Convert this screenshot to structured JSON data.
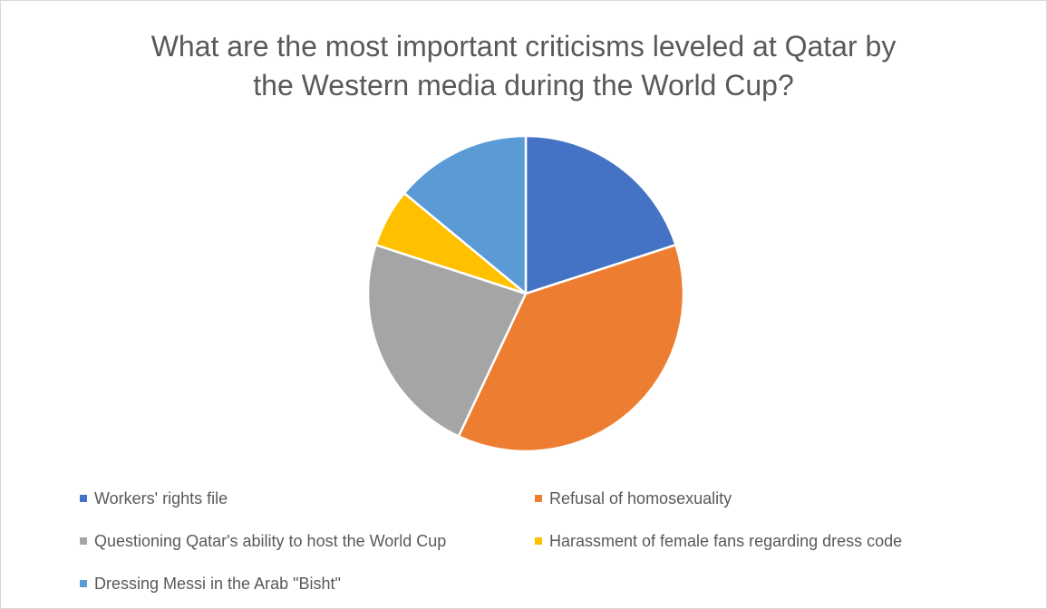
{
  "chart_data": {
    "type": "pie",
    "title": "What are the most important criticisms leveled at Qatar by the Western media during the World Cup?",
    "title_lines": [
      "What are the most important criticisms leveled at Qatar by",
      "the Western media during the World Cup?"
    ],
    "categories": [
      "Workers' rights file",
      "Refusal of homosexuality",
      "Questioning Qatar's ability to host the World Cup",
      "Harassment of female fans regarding dress code",
      "Dressing Messi in the Arab \"Bisht\""
    ],
    "values": [
      20,
      37,
      23,
      6,
      14
    ],
    "colors": [
      "#4472c4",
      "#ed7d31",
      "#a5a5a5",
      "#ffc000",
      "#5b9bd5"
    ],
    "legend_position": "bottom"
  }
}
